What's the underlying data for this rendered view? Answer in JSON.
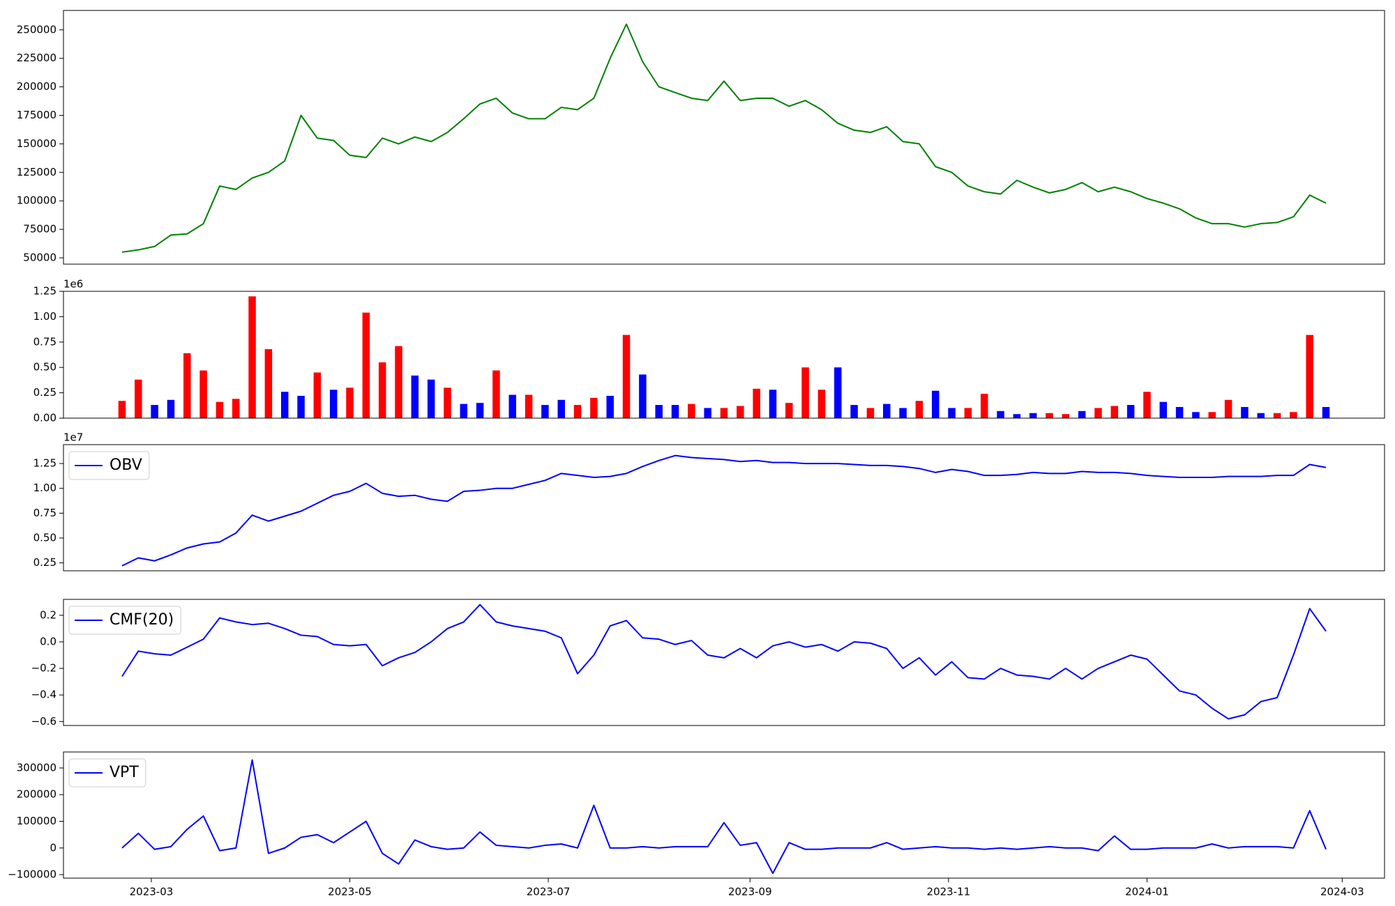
{
  "chart_data": [
    {
      "type": "line",
      "xlim": [
        32,
        438
      ],
      "ylim": [
        44500,
        267000
      ],
      "yticks": [
        50000,
        75000,
        100000,
        125000,
        150000,
        175000,
        200000,
        225000,
        250000
      ],
      "grid": false,
      "x": [
        50,
        55,
        60,
        65,
        70,
        75,
        80,
        85,
        90,
        95,
        100,
        105,
        110,
        115,
        120,
        125,
        130,
        135,
        140,
        145,
        150,
        155,
        160,
        165,
        170,
        175,
        180,
        185,
        190,
        195,
        200,
        205,
        210,
        215,
        220,
        225,
        230,
        235,
        240,
        245,
        250,
        255,
        260,
        265,
        270,
        275,
        280,
        285,
        290,
        295,
        300,
        305,
        310,
        315,
        320,
        325,
        330,
        335,
        340,
        345,
        350,
        355,
        360,
        365,
        370,
        375,
        380,
        385,
        390,
        395,
        400,
        405,
        410,
        415,
        420
      ],
      "series": [
        {
          "color": "green",
          "values": [
            55000,
            57000,
            60000,
            70000,
            71000,
            80000,
            113000,
            110000,
            120000,
            125000,
            135000,
            175000,
            155000,
            153000,
            140000,
            138000,
            155000,
            150000,
            156000,
            152000,
            160000,
            172000,
            185000,
            190000,
            177000,
            172000,
            172000,
            182000,
            180000,
            190000,
            225000,
            255000,
            222000,
            200000,
            195000,
            190000,
            188000,
            205000,
            188000,
            190000,
            190000,
            183000,
            188000,
            180000,
            168000,
            162000,
            160000,
            165000,
            152000,
            150000,
            130000,
            125000,
            113000,
            108000,
            106000,
            118000,
            112000,
            107000,
            110000,
            116000,
            108000,
            112000,
            108000,
            102000,
            98000,
            93000,
            85000,
            80000,
            80000,
            77000,
            80000,
            81000,
            86000,
            105000,
            98000
          ]
        }
      ]
    },
    {
      "type": "bar",
      "xlim": [
        32,
        438
      ],
      "ylim": [
        0,
        1250000
      ],
      "offset_text": "1e6",
      "grid": false,
      "yticks": [
        {
          "value": 0,
          "label": "0.00"
        },
        {
          "value": 250000,
          "label": "0.25"
        },
        {
          "value": 500000,
          "label": "0.50"
        },
        {
          "value": 750000,
          "label": "0.75"
        },
        {
          "value": 1000000,
          "label": "1.00"
        },
        {
          "value": 1250000,
          "label": "1.25"
        }
      ],
      "x": [
        50,
        55,
        60,
        65,
        70,
        75,
        80,
        85,
        90,
        95,
        100,
        105,
        110,
        115,
        120,
        125,
        130,
        135,
        140,
        145,
        150,
        155,
        160,
        165,
        170,
        175,
        180,
        185,
        190,
        195,
        200,
        205,
        210,
        215,
        220,
        225,
        230,
        235,
        240,
        245,
        250,
        255,
        260,
        265,
        270,
        275,
        280,
        285,
        290,
        295,
        300,
        305,
        310,
        315,
        320,
        325,
        330,
        335,
        340,
        345,
        350,
        355,
        360,
        365,
        370,
        375,
        380,
        385,
        390,
        395,
        400,
        405,
        410,
        415,
        420
      ],
      "values": [
        170000,
        380000,
        130000,
        180000,
        640000,
        470000,
        160000,
        190000,
        1200000,
        680000,
        260000,
        220000,
        450000,
        280000,
        300000,
        1040000,
        550000,
        710000,
        420000,
        380000,
        300000,
        140000,
        150000,
        470000,
        230000,
        230000,
        130000,
        180000,
        130000,
        200000,
        220000,
        820000,
        430000,
        130000,
        130000,
        140000,
        100000,
        100000,
        120000,
        290000,
        280000,
        150000,
        500000,
        280000,
        500000,
        130000,
        100000,
        140000,
        100000,
        170000,
        270000,
        100000,
        100000,
        240000,
        70000,
        40000,
        50000,
        50000,
        40000,
        70000,
        100000,
        120000,
        130000,
        260000,
        160000,
        110000,
        60000,
        60000,
        180000,
        110000,
        50000,
        50000,
        60000,
        820000,
        110000
      ],
      "colors": [
        "red",
        "red",
        "blue",
        "blue",
        "red",
        "red",
        "red",
        "red",
        "red",
        "red",
        "blue",
        "blue",
        "red",
        "blue",
        "red",
        "red",
        "red",
        "red",
        "blue",
        "blue",
        "red",
        "blue",
        "blue",
        "red",
        "blue",
        "red",
        "blue",
        "blue",
        "red",
        "red",
        "blue",
        "red",
        "blue",
        "blue",
        "blue",
        "red",
        "blue",
        "red",
        "red",
        "red",
        "blue",
        "red",
        "red",
        "red",
        "blue",
        "blue",
        "red",
        "blue",
        "blue",
        "red",
        "blue",
        "blue",
        "red",
        "red",
        "blue",
        "blue",
        "blue",
        "red",
        "red",
        "blue",
        "red",
        "red",
        "blue",
        "red",
        "blue",
        "blue",
        "blue",
        "red",
        "red",
        "blue",
        "blue",
        "red",
        "red",
        "red",
        "blue"
      ]
    },
    {
      "type": "line",
      "xlim": [
        32,
        438
      ],
      "ylim": [
        1700000,
        14400000
      ],
      "offset_text": "1e7",
      "grid": false,
      "legend": "upper left",
      "yticks": [
        {
          "value": 2500000,
          "label": "0.25"
        },
        {
          "value": 5000000,
          "label": "0.50"
        },
        {
          "value": 7500000,
          "label": "0.75"
        },
        {
          "value": 10000000,
          "label": "1.00"
        },
        {
          "value": 12500000,
          "label": "1.25"
        }
      ],
      "x": [
        50,
        55,
        60,
        65,
        70,
        75,
        80,
        85,
        90,
        95,
        100,
        105,
        110,
        115,
        120,
        125,
        130,
        135,
        140,
        145,
        150,
        155,
        160,
        165,
        170,
        175,
        180,
        185,
        190,
        195,
        200,
        205,
        210,
        215,
        220,
        225,
        230,
        235,
        240,
        245,
        250,
        255,
        260,
        265,
        270,
        275,
        280,
        285,
        290,
        295,
        300,
        305,
        310,
        315,
        320,
        325,
        330,
        335,
        340,
        345,
        350,
        355,
        360,
        365,
        370,
        375,
        380,
        385,
        390,
        395,
        400,
        405,
        410,
        415,
        420
      ],
      "series": [
        {
          "name": "OBV",
          "color": "blue",
          "values": [
            2200000,
            3000000,
            2700000,
            3300000,
            4000000,
            4400000,
            4600000,
            5500000,
            7300000,
            6700000,
            7200000,
            7700000,
            8500000,
            9300000,
            9700000,
            10500000,
            9500000,
            9200000,
            9300000,
            8900000,
            8700000,
            9700000,
            9800000,
            10000000,
            10000000,
            10400000,
            10800000,
            11500000,
            11300000,
            11100000,
            11200000,
            11500000,
            12200000,
            12800000,
            13300000,
            13100000,
            13000000,
            12900000,
            12700000,
            12800000,
            12600000,
            12600000,
            12500000,
            12500000,
            12500000,
            12400000,
            12300000,
            12300000,
            12200000,
            12000000,
            11600000,
            11900000,
            11700000,
            11300000,
            11300000,
            11400000,
            11600000,
            11500000,
            11500000,
            11700000,
            11600000,
            11600000,
            11500000,
            11300000,
            11200000,
            11100000,
            11100000,
            11100000,
            11200000,
            11200000,
            11200000,
            11300000,
            11300000,
            12400000,
            12100000
          ]
        }
      ]
    },
    {
      "type": "line",
      "xlim": [
        32,
        438
      ],
      "ylim": [
        -0.63,
        0.32
      ],
      "grid": false,
      "legend": "upper left",
      "yticks": [
        {
          "value": -0.6,
          "label": "−0.6"
        },
        {
          "value": -0.4,
          "label": "−0.4"
        },
        {
          "value": -0.2,
          "label": "−0.2"
        },
        {
          "value": 0,
          "label": "0.0"
        },
        0.2
      ],
      "x": [
        50,
        55,
        60,
        65,
        70,
        75,
        80,
        85,
        90,
        95,
        100,
        105,
        110,
        115,
        120,
        125,
        130,
        135,
        140,
        145,
        150,
        155,
        160,
        165,
        170,
        175,
        180,
        185,
        190,
        195,
        200,
        205,
        210,
        215,
        220,
        225,
        230,
        235,
        240,
        245,
        250,
        255,
        260,
        265,
        270,
        275,
        280,
        285,
        290,
        295,
        300,
        305,
        310,
        315,
        320,
        325,
        330,
        335,
        340,
        345,
        350,
        355,
        360,
        365,
        370,
        375,
        380,
        385,
        390,
        395,
        400,
        405,
        410,
        415,
        420
      ],
      "series": [
        {
          "name": "CMF(20)",
          "color": "blue",
          "values": [
            -0.26,
            -0.07,
            -0.09,
            -0.1,
            -0.04,
            0.02,
            0.18,
            0.15,
            0.13,
            0.14,
            0.1,
            0.05,
            0.04,
            -0.02,
            -0.03,
            -0.02,
            -0.18,
            -0.12,
            -0.08,
            0,
            0.1,
            0.15,
            0.28,
            0.15,
            0.12,
            0.1,
            0.08,
            0.03,
            -0.24,
            -0.1,
            0.12,
            0.16,
            0.03,
            0.02,
            -0.02,
            0.01,
            -0.1,
            -0.12,
            -0.05,
            -0.12,
            -0.03,
            0,
            -0.04,
            -0.02,
            -0.07,
            0,
            -0.01,
            -0.05,
            -0.2,
            -0.12,
            -0.25,
            -0.15,
            -0.27,
            -0.28,
            -0.2,
            -0.25,
            -0.26,
            -0.28,
            -0.2,
            -0.28,
            -0.2,
            -0.15,
            -0.1,
            -0.13,
            -0.25,
            -0.37,
            -0.4,
            -0.5,
            -0.58,
            -0.55,
            -0.45,
            -0.42,
            -0.1,
            0.25,
            0.08
          ]
        }
      ]
    },
    {
      "type": "line",
      "xlim": [
        32,
        438
      ],
      "ylim": [
        -113000,
        360000
      ],
      "grid": false,
      "legend": "upper left",
      "yticks": [
        {
          "value": -100000,
          "label": "−100000"
        },
        0,
        100000,
        200000,
        300000
      ],
      "xticks": [
        {
          "value": 59,
          "label": "2023-03"
        },
        {
          "value": 120,
          "label": "2023-05"
        },
        {
          "value": 181,
          "label": "2023-07"
        },
        {
          "value": 243,
          "label": "2023-09"
        },
        {
          "value": 304,
          "label": "2023-11"
        },
        {
          "value": 365,
          "label": "2024-01"
        },
        {
          "value": 425,
          "label": "2024-03"
        }
      ],
      "x": [
        50,
        55,
        60,
        65,
        70,
        75,
        80,
        85,
        90,
        95,
        100,
        105,
        110,
        115,
        120,
        125,
        130,
        135,
        140,
        145,
        150,
        155,
        160,
        165,
        170,
        175,
        180,
        185,
        190,
        195,
        200,
        205,
        210,
        215,
        220,
        225,
        230,
        235,
        240,
        245,
        250,
        255,
        260,
        265,
        270,
        275,
        280,
        285,
        290,
        295,
        300,
        305,
        310,
        315,
        320,
        325,
        330,
        335,
        340,
        345,
        350,
        355,
        360,
        365,
        370,
        375,
        380,
        385,
        390,
        395,
        400,
        405,
        410,
        415,
        420
      ],
      "series": [
        {
          "name": "VPT",
          "color": "blue",
          "values": [
            0,
            55000,
            -5000,
            5000,
            70000,
            120000,
            -10000,
            0,
            330000,
            -20000,
            0,
            40000,
            50000,
            20000,
            60000,
            100000,
            -20000,
            -60000,
            30000,
            5000,
            -5000,
            0,
            60000,
            10000,
            5000,
            0,
            10000,
            15000,
            0,
            160000,
            0,
            0,
            5000,
            0,
            5000,
            5000,
            5000,
            95000,
            10000,
            20000,
            -95000,
            20000,
            -5000,
            -5000,
            0,
            0,
            0,
            20000,
            -5000,
            0,
            5000,
            0,
            0,
            -5000,
            0,
            -5000,
            0,
            5000,
            0,
            0,
            -10000,
            45000,
            -5000,
            -5000,
            0,
            0,
            0,
            15000,
            0,
            5000,
            5000,
            5000,
            0,
            140000,
            -5000
          ]
        }
      ]
    }
  ]
}
